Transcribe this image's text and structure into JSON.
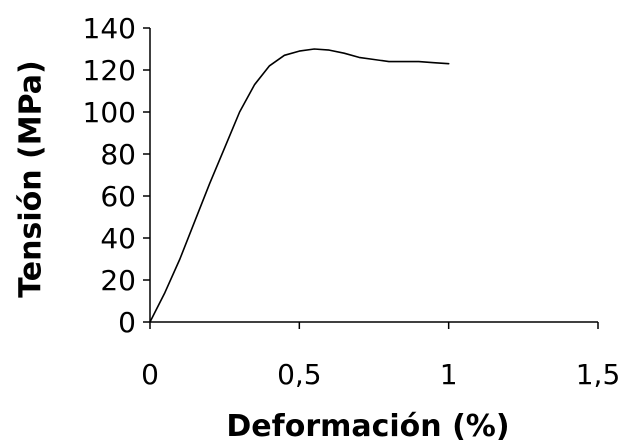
{
  "chart_data": {
    "type": "line",
    "title": "",
    "xlabel": "Deformación (%)",
    "ylabel": "Tensión (MPa)",
    "xlim": [
      0,
      1.5
    ],
    "ylim": [
      0,
      140
    ],
    "xticks": [
      0,
      0.5,
      1,
      1.5
    ],
    "xtick_labels": [
      "0",
      "0,5",
      "1",
      "1,5"
    ],
    "yticks": [
      0,
      20,
      40,
      60,
      80,
      100,
      120,
      140
    ],
    "ytick_labels": [
      "0",
      "20",
      "40",
      "60",
      "80",
      "100",
      "120",
      "140"
    ],
    "grid": false,
    "legend": "none",
    "line_color": "#000000",
    "series": [
      {
        "x": [
          0,
          0.05,
          0.1,
          0.15,
          0.2,
          0.25,
          0.3,
          0.35,
          0.4,
          0.45,
          0.5,
          0.55,
          0.6,
          0.65,
          0.7,
          0.75,
          0.8,
          0.85,
          0.9,
          0.95,
          1.0
        ],
        "y": [
          0,
          14,
          30,
          48,
          66,
          83,
          100,
          113,
          122,
          127,
          129,
          130,
          129.5,
          128,
          126,
          125,
          124,
          124,
          124,
          123.5,
          123
        ]
      }
    ]
  }
}
